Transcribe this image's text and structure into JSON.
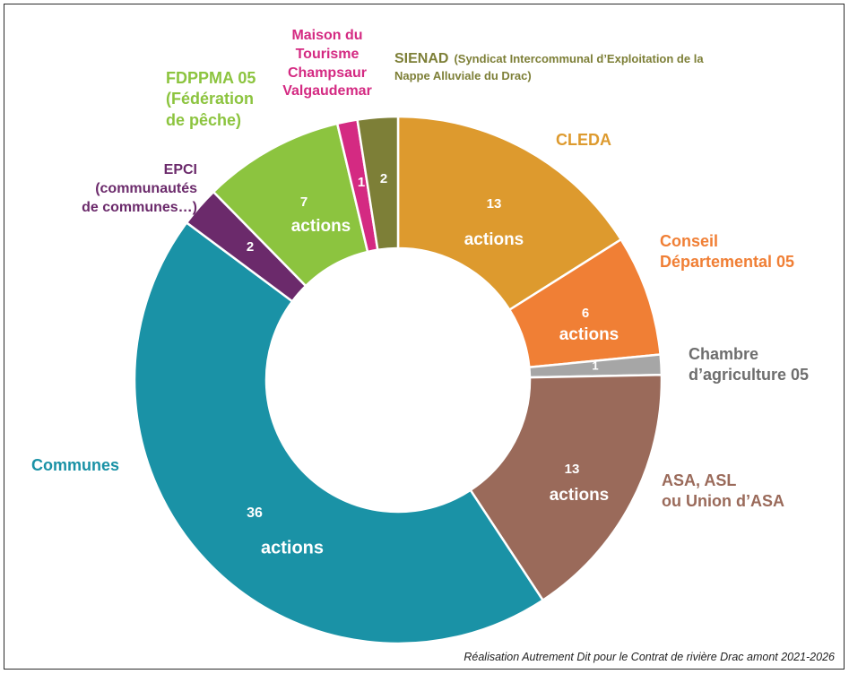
{
  "chart_data": {
    "type": "pie",
    "donut": true,
    "slices": [
      {
        "label": [
          "CLEDA"
        ],
        "value": 13,
        "value_text": "13",
        "unit_text": "actions",
        "color": "#DD9A2E"
      },
      {
        "label": [
          "Conseil",
          "Départemental 05"
        ],
        "value": 6,
        "value_text": "6",
        "unit_text": "actions",
        "color": "#F07F35"
      },
      {
        "label": [
          "Chambre",
          "d’agriculture 05"
        ],
        "value": 1,
        "value_text": "1",
        "unit_text": "",
        "color": "#A6A6A6"
      },
      {
        "label": [
          "ASA, ASL",
          "ou Union d’ASA"
        ],
        "value": 13,
        "value_text": "13",
        "unit_text": "actions",
        "color": "#9A6A5A"
      },
      {
        "label": [
          "Communes"
        ],
        "value": 36,
        "value_text": "36",
        "unit_text": "actions",
        "color": "#1A92A6"
      },
      {
        "label": [
          "EPCI",
          "(communautés",
          "de communes…)"
        ],
        "value": 2,
        "value_text": "2",
        "unit_text": "",
        "color": "#6B2A6B"
      },
      {
        "label": [
          "FDPPMA 05",
          "(Fédération",
          "de pêche)"
        ],
        "value": 7,
        "value_text": "7",
        "unit_text": "actions",
        "color": "#8CC43F"
      },
      {
        "label": [
          "Maison du",
          "Tourisme",
          "Champsaur",
          "Valgaudemar"
        ],
        "value": 1,
        "value_text": "1",
        "unit_text": "",
        "color": "#D42A82"
      },
      {
        "label": [
          "SIENAD",
          "(Syndicat Intercommunal d’Exploitation de la",
          "Nappe Alluviale du Drac)"
        ],
        "value": 2,
        "value_text": "2",
        "unit_text": "",
        "color": "#7D7F37"
      }
    ]
  },
  "footer": {
    "credit": "Réalisation Autrement Dit pour le Contrat de rivière Drac amont 2021-2026"
  }
}
